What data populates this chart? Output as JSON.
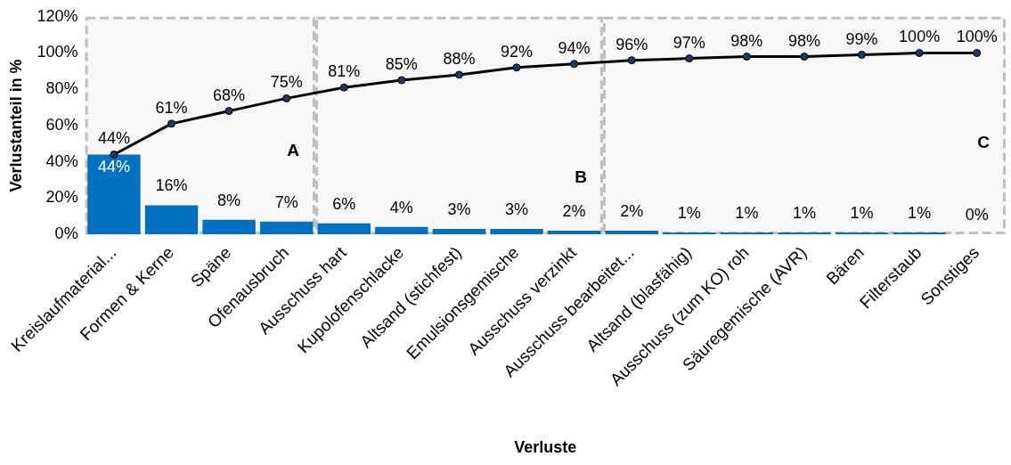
{
  "chart_data": {
    "type": "bar",
    "xlabel": "Verluste",
    "ylabel": "Verlustanteil in %",
    "categories": [
      "Kreislaufmaterial...",
      "Formen & Kerne",
      "Späne",
      "Ofenausbruch",
      "Ausschuss hart",
      "Kupolofenschlacke",
      "Altsand (stichfest)",
      "Emulsionsgemische",
      "Ausschuss verzinkt",
      "Ausschuss bearbeitet...",
      "Altsand (blasfähig)",
      "Ausschuss (zum KO) roh",
      "Säuregemische (AVR)",
      "Bären",
      "Filterstaub",
      "Sonstiges"
    ],
    "series": [
      {
        "color": "#0070c0",
        "values": [
          44,
          16,
          8,
          7,
          6,
          4,
          3,
          3,
          2,
          2,
          1,
          1,
          1,
          1,
          1,
          0
        ],
        "value_labels": [
          "44%",
          "16%",
          "8%",
          "7%",
          "6%",
          "4%",
          "3%",
          "3%",
          "2%",
          "2%",
          "1%",
          "1%",
          "1%",
          "1%",
          "1%",
          "0%"
        ]
      },
      {
        "type": "line",
        "color": "#000000",
        "values": [
          44,
          61,
          68,
          75,
          81,
          85,
          88,
          92,
          94,
          96,
          97,
          98,
          98,
          99,
          100,
          100
        ],
        "value_labels": [
          "44%",
          "61%",
          "68%",
          "75%",
          "81%",
          "85%",
          "88%",
          "92%",
          "94%",
          "96%",
          "97%",
          "98%",
          "98%",
          "99%",
          "100%",
          "100%"
        ]
      }
    ],
    "ylim": [
      0,
      120
    ],
    "yticks": [
      {
        "value": 0,
        "label": "0%"
      },
      {
        "value": 20,
        "label": "20%"
      },
      {
        "value": 40,
        "label": "40%"
      },
      {
        "value": 60,
        "label": "60%"
      },
      {
        "value": 80,
        "label": "80%"
      },
      {
        "value": 100,
        "label": "100%"
      },
      {
        "value": 120,
        "label": "120%"
      }
    ],
    "marker": "circle",
    "line_style": "solid",
    "bands": [
      {
        "axis": "x",
        "from": "Kreislaufmaterial...",
        "to": "Ofenausbruch",
        "label": "A",
        "color": "#bfbfbf"
      },
      {
        "axis": "x",
        "from": "Ausschuss hart",
        "to": "Ausschuss verzinkt",
        "label": "B",
        "color": "#bfbfbf"
      },
      {
        "axis": "x",
        "from": "Ausschuss bearbeitet...",
        "to": "Sonstiges",
        "label": "C",
        "color": "#bfbfbf"
      }
    ]
  }
}
